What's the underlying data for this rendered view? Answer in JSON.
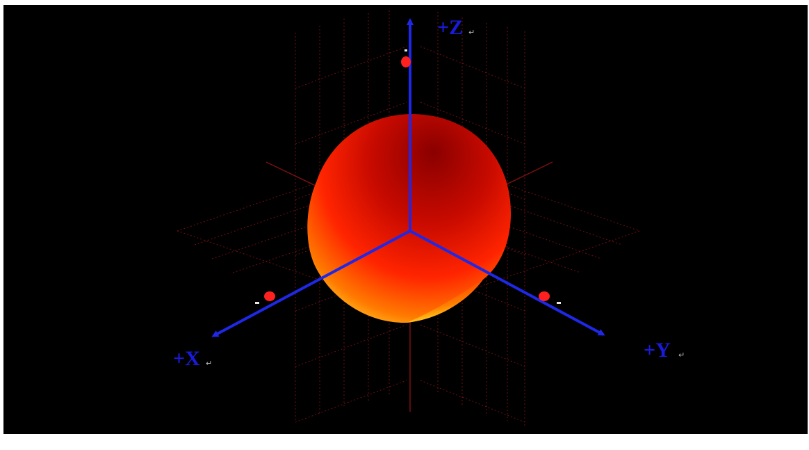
{
  "axes": {
    "x": {
      "label": "+X"
    },
    "y": {
      "label": "+Y"
    },
    "z": {
      "label": "+Z"
    }
  },
  "colors": {
    "background": "#000000",
    "axis": "#1e28e6",
    "grid": "#6e1010",
    "lobe_dark": "#8e0000",
    "lobe_mid": "#ff2a00",
    "lobe_light": "#ffff40",
    "marker": "#ff2020"
  },
  "paragraph_mark": "↵"
}
